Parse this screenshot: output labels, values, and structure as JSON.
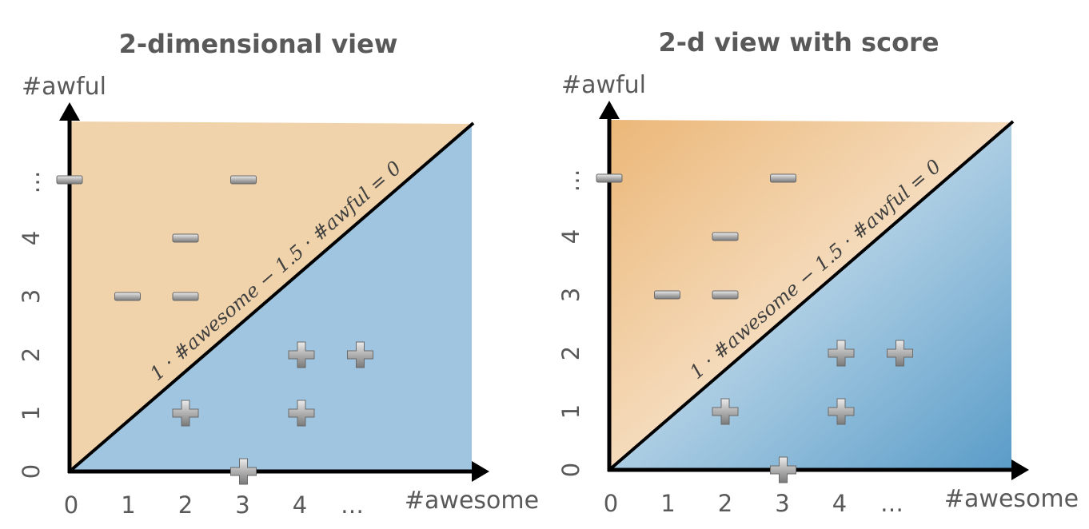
{
  "panels": [
    {
      "title": "2-dimensional view",
      "xlabel": "#awesome",
      "ylabel": "#awful",
      "x_ticks": [
        "0",
        "1",
        "2",
        "3",
        "4",
        "…"
      ],
      "y_ticks": [
        "0",
        "1",
        "2",
        "3",
        "4",
        "…"
      ],
      "boundary_label": "1 · #awesome − 1.5 · #awful = 0",
      "fill_style": "solid",
      "colors": {
        "negative_region": "#f0d3aa",
        "positive_region": "#9fc5e1"
      }
    },
    {
      "title": "2-d view with score",
      "xlabel": "#awesome",
      "ylabel": "#awful",
      "x_ticks": [
        "0",
        "1",
        "2",
        "3",
        "4",
        "…"
      ],
      "y_ticks": [
        "0",
        "1",
        "2",
        "3",
        "4",
        "…"
      ],
      "boundary_label": "1 · #awesome − 1.5 · #awful = 0",
      "fill_style": "gradient",
      "colors": {
        "negative_region": "#ebb778",
        "positive_region": "#5a9cc8"
      }
    }
  ],
  "chart_data": {
    "type": "scatter",
    "xlabel": "#awesome",
    "ylabel": "#awful",
    "decision_boundary": {
      "awesome_coef": 1,
      "awful_coef": -1.5,
      "intercept": 0
    },
    "series": [
      {
        "name": "negative",
        "marker": "minus",
        "points": [
          [
            0,
            5
          ],
          [
            3,
            5
          ],
          [
            2,
            4
          ],
          [
            1,
            3
          ],
          [
            2,
            3
          ]
        ]
      },
      {
        "name": "positive",
        "marker": "plus",
        "points": [
          [
            4,
            2
          ],
          [
            5,
            2
          ],
          [
            2,
            1
          ],
          [
            4,
            1
          ],
          [
            3,
            0
          ]
        ]
      }
    ]
  }
}
